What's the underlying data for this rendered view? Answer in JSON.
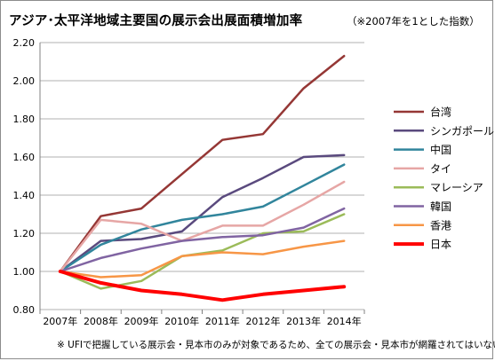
{
  "title": "アジア･太平洋地域主要国の展示会出展面積増加率",
  "subtitle": "（※2007年を1とした指数）",
  "note": "※ UFIで把握している展示会・見本市のみが対象であるため、全ての展示会・見本市が網羅されてはいない",
  "chart_data": {
    "type": "line",
    "title": "アジア･太平洋地域主要国の展示会出展面積増加率",
    "categories": [
      "2007年",
      "2008年",
      "2009年",
      "2010年",
      "2011年",
      "2012年",
      "2013年",
      "2014年"
    ],
    "ylim": [
      0.8,
      2.2
    ],
    "yticks": [
      "0.80",
      "1.00",
      "1.20",
      "1.40",
      "1.60",
      "1.80",
      "2.00",
      "2.20"
    ],
    "grid": true,
    "legend_position": "right",
    "series": [
      {
        "name": "台湾",
        "color": "#953735",
        "values": [
          1.0,
          1.29,
          1.33,
          1.51,
          1.69,
          1.72,
          1.96,
          2.13
        ]
      },
      {
        "name": "シンガポール",
        "color": "#5a4a7e",
        "values": [
          1.0,
          1.16,
          1.17,
          1.21,
          1.39,
          1.49,
          1.6,
          1.61
        ]
      },
      {
        "name": "中国",
        "color": "#31859c",
        "values": [
          1.0,
          1.14,
          1.22,
          1.27,
          1.3,
          1.34,
          1.45,
          1.56
        ]
      },
      {
        "name": "タイ",
        "color": "#e6a6a5",
        "values": [
          1.0,
          1.27,
          1.25,
          1.16,
          1.24,
          1.24,
          1.35,
          1.47
        ]
      },
      {
        "name": "マレーシア",
        "color": "#9bbb59",
        "values": [
          1.0,
          0.91,
          0.95,
          1.08,
          1.11,
          1.2,
          1.21,
          1.3
        ]
      },
      {
        "name": "韓国",
        "color": "#8064a2",
        "values": [
          1.0,
          1.07,
          1.12,
          1.16,
          1.18,
          1.19,
          1.23,
          1.33
        ]
      },
      {
        "name": "香港",
        "color": "#f79646",
        "values": [
          1.0,
          0.97,
          0.98,
          1.08,
          1.1,
          1.09,
          1.13,
          1.16
        ]
      },
      {
        "name": "日本",
        "color": "#ff0000",
        "values": [
          1.0,
          0.94,
          0.9,
          0.88,
          0.85,
          0.88,
          0.9,
          0.92
        ]
      }
    ]
  }
}
